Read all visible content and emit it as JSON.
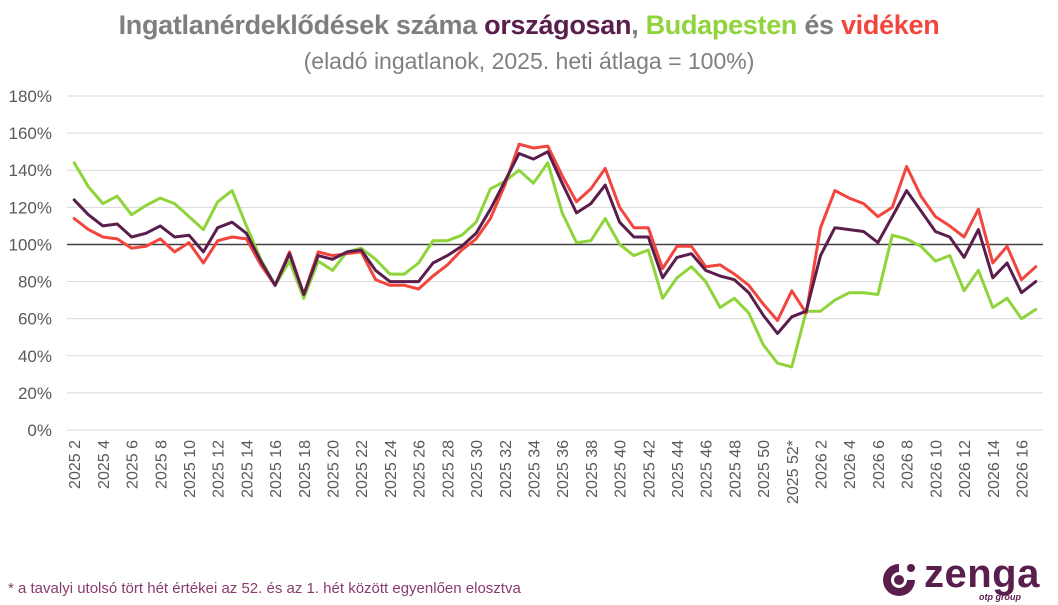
{
  "title_parts": {
    "p1": "Ingatlanérdeklődések száma ",
    "p2": "országosan",
    "p3": ", ",
    "p4": "Budapesten",
    "p5": " és ",
    "p6": "vidéken"
  },
  "colors": {
    "title_gray": "#7f7f7f",
    "orszagosan": "#5a1e4d",
    "budapesten": "#8fd43a",
    "videken": "#f2453d",
    "baseline": "#404040",
    "grid": "#d9d9d9"
  },
  "subtitle": "(eladó ingatlanok, 2025. heti átlaga = 100%)",
  "footnote": "* a tavalyi utolsó tört hét értékei az 52. és az 1. hét között egyenlően elosztva",
  "logo": {
    "name": "zenga",
    "sub": "otp group"
  },
  "chart_data": {
    "type": "line",
    "y_ticks": [
      "0%",
      "20%",
      "40%",
      "60%",
      "80%",
      "100%",
      "120%",
      "140%",
      "160%",
      "180%"
    ],
    "ylim": [
      0,
      180
    ],
    "reference_line": 100,
    "x": [
      "2025 2",
      "2025 3",
      "2025 4",
      "2025 5",
      "2025 6",
      "2025 7",
      "2025 8",
      "2025 9",
      "2025 10",
      "2025 11",
      "2025 12",
      "2025 13",
      "2025 14",
      "2025 15",
      "2025 16",
      "2025 17",
      "2025 18",
      "2025 19",
      "2025 20",
      "2025 21",
      "2025 22",
      "2025 23",
      "2025 24",
      "2025 25",
      "2025 26",
      "2025 27",
      "2025 28",
      "2025 29",
      "2025 30",
      "2025 31",
      "2025 32",
      "2025 33",
      "2025 34",
      "2025 35",
      "2025 36",
      "2025 37",
      "2025 38",
      "2025 39",
      "2025 40",
      "2025 41",
      "2025 42",
      "2025 43",
      "2025 44",
      "2025 45",
      "2025 46",
      "2025 47",
      "2025 48",
      "2025 49",
      "2025 50",
      "2025 51",
      "2025 52*",
      "2026 1",
      "2026 2",
      "2026 3",
      "2026 4",
      "2026 5",
      "2026 6",
      "2026 7",
      "2026 8",
      "2026 9",
      "2026 10",
      "2026 11",
      "2026 12",
      "2026 13",
      "2026 14",
      "2026 15",
      "2026 16",
      "2026 17"
    ],
    "x_tick_labels": [
      "2025 2",
      "2025 4",
      "2025 6",
      "2025 8",
      "2025 10",
      "2025 12",
      "2025 14",
      "2025 16",
      "2025 18",
      "2025 20",
      "2025 22",
      "2025 24",
      "2025 26",
      "2025 28",
      "2025 30",
      "2025 32",
      "2025 34",
      "2025 36",
      "2025 38",
      "2025 40",
      "2025 42",
      "2025 44",
      "2025 46",
      "2025 48",
      "2025 50",
      "2025 52*",
      "2026 2",
      "2026 4",
      "2026 6",
      "2026 8",
      "2026 10",
      "2026 12",
      "2026 14",
      "2026 16"
    ],
    "series": [
      {
        "name": "Budapesten",
        "color": "#8fd43a",
        "values": [
          144,
          131,
          122,
          126,
          116,
          121,
          125,
          122,
          115,
          108,
          123,
          129,
          110,
          92,
          78,
          91,
          71,
          91,
          86,
          96,
          98,
          92,
          84,
          84,
          90,
          102,
          102,
          105,
          112,
          130,
          134,
          140,
          133,
          144,
          117,
          101,
          102,
          114,
          100,
          94,
          97,
          71,
          82,
          88,
          80,
          66,
          71,
          63,
          46,
          36,
          34,
          64,
          64,
          70,
          74,
          74,
          73,
          105,
          103,
          99,
          91,
          94,
          75,
          86,
          66,
          71,
          60,
          65
        ]
      },
      {
        "name": "vidéken",
        "color": "#f2453d",
        "values": [
          114,
          108,
          104,
          103,
          98,
          99,
          103,
          96,
          101,
          90,
          102,
          104,
          103,
          89,
          78,
          96,
          73,
          96,
          94,
          95,
          96,
          81,
          78,
          78,
          76,
          83,
          89,
          97,
          103,
          114,
          132,
          154,
          152,
          153,
          137,
          123,
          130,
          141,
          120,
          109,
          109,
          87,
          99,
          99,
          88,
          89,
          84,
          78,
          68,
          59,
          75,
          63,
          109,
          129,
          125,
          122,
          115,
          120,
          142,
          126,
          115,
          110,
          104,
          119,
          90,
          99,
          81,
          88
        ]
      },
      {
        "name": "országosan",
        "color": "#5a1e4d",
        "values": [
          124,
          116,
          110,
          111,
          104,
          106,
          110,
          104,
          105,
          96,
          109,
          112,
          106,
          91,
          78,
          95,
          73,
          94,
          92,
          96,
          97,
          86,
          80,
          80,
          80,
          90,
          94,
          99,
          106,
          119,
          134,
          149,
          146,
          150,
          133,
          117,
          122,
          132,
          112,
          104,
          104,
          82,
          93,
          95,
          86,
          83,
          81,
          74,
          62,
          52,
          61,
          64,
          94,
          109,
          108,
          107,
          101,
          115,
          129,
          118,
          107,
          104,
          93,
          108,
          82,
          90,
          74,
          80
        ]
      }
    ]
  }
}
